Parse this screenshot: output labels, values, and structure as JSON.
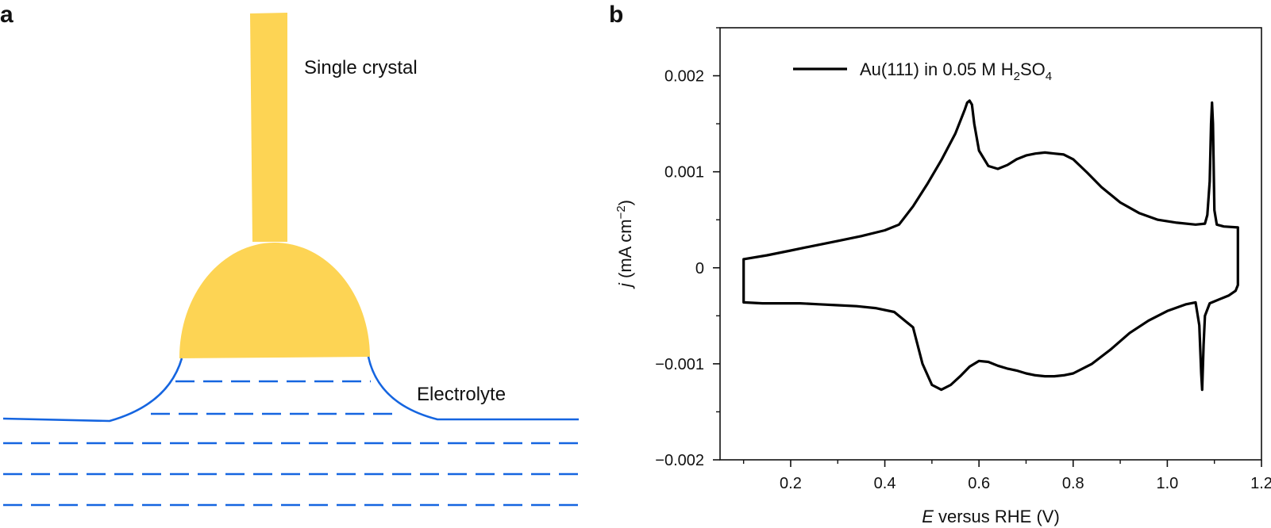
{
  "panel_a": {
    "letter": "a",
    "crystal_label": "Single crystal",
    "electrolyte_label": "Electrolyte",
    "colors": {
      "crystal": "#fdd454",
      "electrolyte": "#1565e0"
    }
  },
  "panel_b": {
    "letter": "b"
  },
  "chart_data": {
    "type": "line",
    "title": "",
    "xlabel_italic": "E",
    "xlabel_rest": " versus RHE (V)",
    "ylabel_italic": "j",
    "ylabel_rest": " (mA cm",
    "ylabel_sup": "−2",
    "ylabel_end": ")",
    "xlim": [
      0.05,
      1.2
    ],
    "ylim": [
      -0.002,
      0.0025
    ],
    "x_ticks": [
      0.2,
      0.4,
      0.6,
      0.8,
      1.0,
      1.2
    ],
    "x_tick_labels": [
      "0.2",
      "0.4",
      "0.6",
      "0.8",
      "1.0",
      "1.2"
    ],
    "y_ticks": [
      -0.002,
      -0.001,
      0,
      0.001,
      0.002
    ],
    "y_tick_labels": [
      "−0.002",
      "−0.001",
      "0",
      "0.001",
      "0.002"
    ],
    "grid": false,
    "legend_position": "top-left",
    "series": [
      {
        "name_parts": [
          "Au(111) in 0.05 M H",
          "2",
          "SO",
          "4"
        ],
        "color": "#000000",
        "x": [
          0.1,
          0.1,
          0.15,
          0.2,
          0.25,
          0.3,
          0.35,
          0.4,
          0.43,
          0.46,
          0.49,
          0.52,
          0.55,
          0.57,
          0.575,
          0.58,
          0.585,
          0.59,
          0.6,
          0.62,
          0.64,
          0.66,
          0.68,
          0.7,
          0.72,
          0.74,
          0.76,
          0.78,
          0.8,
          0.83,
          0.86,
          0.9,
          0.94,
          0.98,
          1.02,
          1.06,
          1.08,
          1.085,
          1.09,
          1.093,
          1.095,
          1.097,
          1.1,
          1.105,
          1.12,
          1.15,
          1.15,
          1.145,
          1.13,
          1.11,
          1.09,
          1.08,
          1.077,
          1.074,
          1.072,
          1.068,
          1.06,
          1.04,
          1.0,
          0.96,
          0.92,
          0.88,
          0.84,
          0.8,
          0.78,
          0.76,
          0.74,
          0.72,
          0.7,
          0.68,
          0.66,
          0.64,
          0.62,
          0.6,
          0.58,
          0.56,
          0.54,
          0.52,
          0.5,
          0.48,
          0.46,
          0.42,
          0.38,
          0.34,
          0.3,
          0.26,
          0.22,
          0.18,
          0.14,
          0.1
        ],
        "y": [
          -0.00036,
          9e-05,
          0.00013,
          0.00018,
          0.00023,
          0.00028,
          0.00033,
          0.00039,
          0.00045,
          0.00064,
          0.00087,
          0.00112,
          0.0014,
          0.00165,
          0.00172,
          0.00174,
          0.0017,
          0.0015,
          0.00122,
          0.00106,
          0.00103,
          0.00107,
          0.00113,
          0.00117,
          0.00119,
          0.0012,
          0.00119,
          0.00118,
          0.00113,
          0.00099,
          0.00084,
          0.00068,
          0.00057,
          0.0005,
          0.00047,
          0.00045,
          0.00046,
          0.00055,
          0.0009,
          0.0015,
          0.00172,
          0.0015,
          0.0006,
          0.00045,
          0.00043,
          0.00042,
          -0.00018,
          -0.00024,
          -0.00029,
          -0.00033,
          -0.00037,
          -0.0005,
          -0.0008,
          -0.00127,
          -0.0011,
          -0.0006,
          -0.00036,
          -0.00038,
          -0.00045,
          -0.00055,
          -0.00068,
          -0.00085,
          -0.001,
          -0.0011,
          -0.00112,
          -0.00113,
          -0.00113,
          -0.00112,
          -0.0011,
          -0.00107,
          -0.00105,
          -0.00102,
          -0.00098,
          -0.00097,
          -0.00103,
          -0.00113,
          -0.00122,
          -0.00127,
          -0.00122,
          -0.001,
          -0.00062,
          -0.00046,
          -0.00042,
          -0.0004,
          -0.00039,
          -0.00038,
          -0.00037,
          -0.00037,
          -0.00037,
          -0.00036
        ]
      }
    ]
  }
}
